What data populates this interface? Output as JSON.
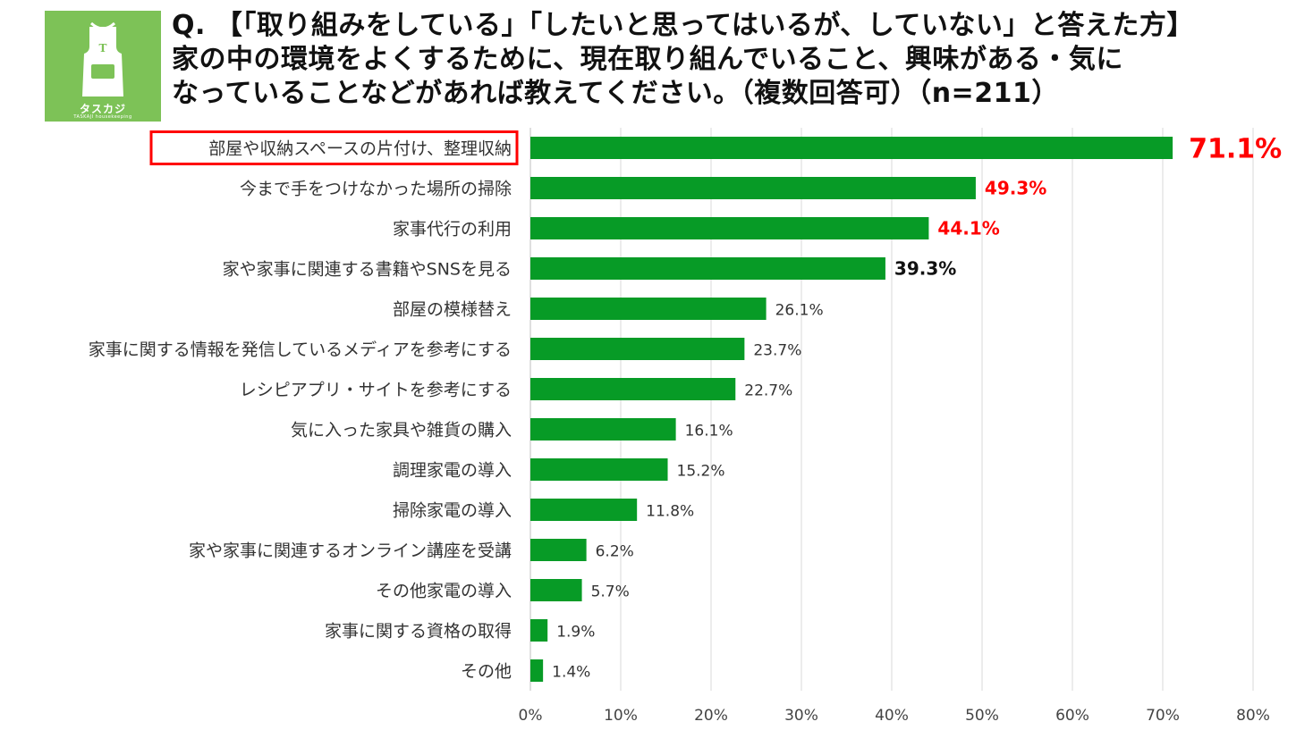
{
  "header": {
    "logo_text": "タスカジ",
    "logo_subtext": "TASKAJI housekeeping",
    "logo_letter": "T",
    "title_lines": [
      "Q. 【「取り組みをしている」「したいと思ってはいるが、していない」と答えた方】",
      "家の中の環境をよくするために、現在取り組んでいること、興味がある・気に",
      "なっていることなどがあれば教えてください。（複数回答可）（n=211）"
    ]
  },
  "colors": {
    "bar": "#079b26",
    "highlight": "#ff0000",
    "grid": "#d9d9d9",
    "logo_bg": "#7dc257"
  },
  "chart_data": {
    "type": "bar",
    "orientation": "horizontal",
    "categories": [
      "部屋や収納スペースの片付け、整理収納",
      "今まで手をつけなかった場所の掃除",
      "家事代行の利用",
      "家や家事に関連する書籍やSNSを見る",
      "部屋の模様替え",
      "家事に関する情報を発信しているメディアを参考にする",
      "レシピアプリ・サイトを参考にする",
      "気に入った家具や雑貨の購入",
      "調理家電の導入",
      "掃除家電の導入",
      "家や家事に関連するオンライン講座を受講",
      "その他家電の導入",
      "家事に関する資格の取得",
      "その他"
    ],
    "values": [
      71.1,
      49.3,
      44.1,
      39.3,
      26.1,
      23.7,
      22.7,
      16.1,
      15.2,
      11.8,
      6.2,
      5.7,
      1.9,
      1.4
    ],
    "value_labels": [
      "71.1%",
      "49.3%",
      "44.1%",
      "39.3%",
      "26.1%",
      "23.7%",
      "22.7%",
      "16.1%",
      "15.2%",
      "11.8%",
      "6.2%",
      "5.7%",
      "1.9%",
      "1.4%"
    ],
    "label_styles": [
      "red-large",
      "red-bold",
      "red-bold",
      "black-bold",
      "normal",
      "normal",
      "normal",
      "normal",
      "normal",
      "normal",
      "normal",
      "normal",
      "normal",
      "normal"
    ],
    "highlighted_category": 0,
    "x_ticks": [
      "0%",
      "10%",
      "20%",
      "30%",
      "40%",
      "50%",
      "60%",
      "70%",
      "80%"
    ],
    "xlim": [
      0,
      80
    ],
    "grid": true,
    "legend": "none"
  }
}
